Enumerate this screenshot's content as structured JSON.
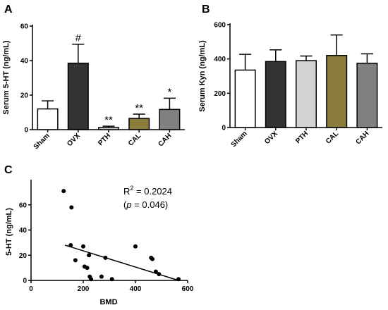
{
  "chart_data": [
    {
      "panel": "A",
      "type": "bar",
      "ylabel": "Serum 5-HT (ng/mL)",
      "categories": [
        "Sham",
        "OVX",
        "PTH",
        "CAL",
        "CAH"
      ],
      "values": [
        12,
        38.5,
        1.2,
        6.5,
        11.7
      ],
      "errors": [
        4.7,
        11,
        0.8,
        2.5,
        6.5
      ],
      "annotations": [
        "",
        "#",
        "**",
        "**",
        "*"
      ],
      "colors": [
        "#ffffff",
        "#333333",
        "#d3d3d3",
        "#8a7d3b",
        "#808080"
      ],
      "ylim": [
        0,
        60
      ],
      "yticks": [
        0,
        20,
        40,
        60
      ]
    },
    {
      "panel": "B",
      "type": "bar",
      "ylabel": "Serum Kyn (ng/mL)",
      "categories": [
        "Sham",
        "OVX",
        "PTH",
        "CAL",
        "CAH"
      ],
      "values": [
        335,
        385,
        390,
        420,
        375
      ],
      "errors": [
        92,
        68,
        27,
        120,
        55
      ],
      "annotations": [
        "",
        "",
        "",
        "",
        ""
      ],
      "colors": [
        "#ffffff",
        "#333333",
        "#d3d3d3",
        "#8a7d3b",
        "#808080"
      ],
      "ylim": [
        0,
        600
      ],
      "yticks": [
        0,
        200,
        400,
        600
      ]
    },
    {
      "panel": "C",
      "type": "scatter",
      "xlabel": "BMD",
      "ylabel": "5-HT (ng/mL)",
      "xlim": [
        0,
        600
      ],
      "ylim": [
        0,
        80
      ],
      "xticks": [
        0,
        200,
        400,
        600
      ],
      "yticks": [
        0,
        20,
        40,
        60
      ],
      "points": [
        [
          125,
          71
        ],
        [
          155,
          58
        ],
        [
          152,
          28
        ],
        [
          170,
          16
        ],
        [
          200,
          27
        ],
        [
          205,
          11
        ],
        [
          215,
          10
        ],
        [
          222,
          20
        ],
        [
          225,
          3
        ],
        [
          230,
          1
        ],
        [
          270,
          3
        ],
        [
          285,
          18
        ],
        [
          310,
          1
        ],
        [
          400,
          27
        ],
        [
          460,
          18
        ],
        [
          465,
          17
        ],
        [
          478,
          7
        ],
        [
          490,
          5
        ],
        [
          565,
          1
        ]
      ],
      "fit_line": [
        [
          130,
          28
        ],
        [
          565,
          0
        ]
      ],
      "r2_prefix": "R",
      "r2_sup": "2",
      "r2_value": " = 0.2024",
      "p_open": "(",
      "p_symbol": "p",
      "p_value": " = 0.046)"
    }
  ]
}
